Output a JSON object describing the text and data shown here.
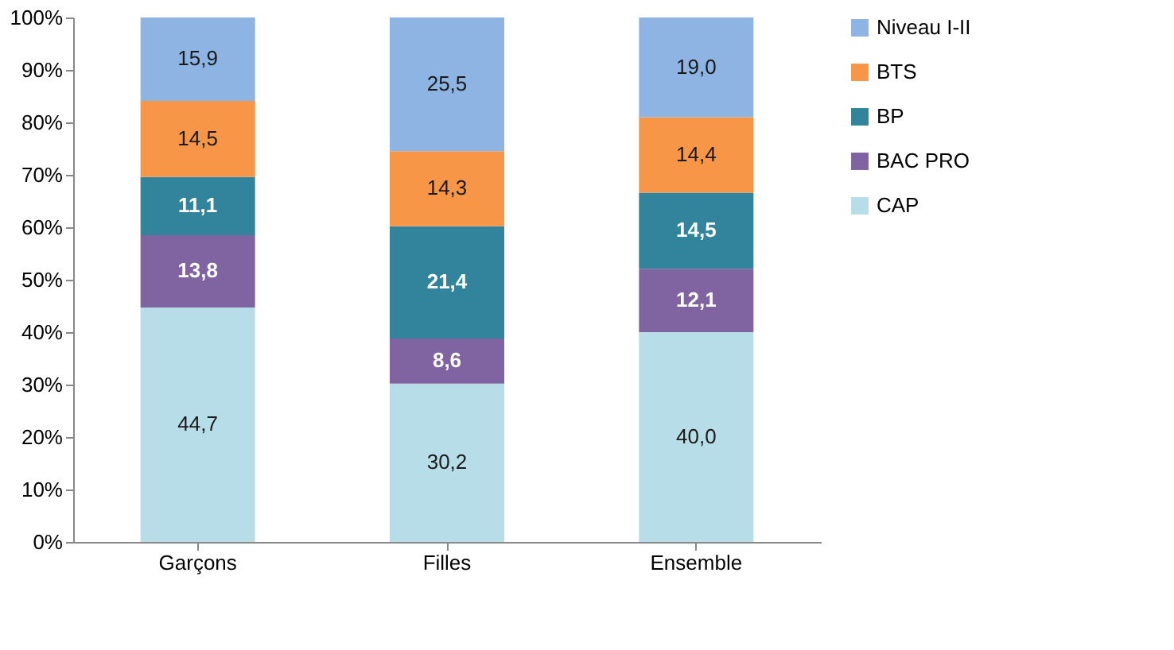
{
  "chart_data": {
    "type": "bar",
    "stacked": true,
    "categories": [
      "Garçons",
      "Filles",
      "Ensemble"
    ],
    "series": [
      {
        "name": "CAP",
        "color": "#b7dee8",
        "values": [
          44.7,
          30.2,
          40.0
        ],
        "value_labels": [
          "44,7",
          "30,2",
          "40,0"
        ]
      },
      {
        "name": "BAC PRO",
        "color": "#8064a2",
        "values": [
          13.8,
          8.6,
          12.1
        ],
        "value_labels": [
          "13,8",
          "8,6",
          "12,1"
        ]
      },
      {
        "name": "BP",
        "color": "#31849b",
        "values": [
          11.1,
          21.4,
          14.5
        ],
        "value_labels": [
          "11,1",
          "21,4",
          "14,5"
        ]
      },
      {
        "name": "BTS",
        "color": "#f79646",
        "values": [
          14.5,
          14.3,
          14.4
        ],
        "value_labels": [
          "14,5",
          "14,3",
          "14,4"
        ]
      },
      {
        "name": "Niveau I-II",
        "color": "#8eb4e3",
        "values": [
          15.9,
          25.5,
          19.0
        ],
        "value_labels": [
          "15,9",
          "25,5",
          "19,0"
        ]
      }
    ],
    "ylim": [
      0,
      100
    ],
    "yticks": [
      {
        "value": 0,
        "label": "0%"
      },
      {
        "value": 10,
        "label": "10%"
      },
      {
        "value": 20,
        "label": "20%"
      },
      {
        "value": 30,
        "label": "30%"
      },
      {
        "value": 40,
        "label": "40%"
      },
      {
        "value": 50,
        "label": "50%"
      },
      {
        "value": 60,
        "label": "60%"
      },
      {
        "value": 70,
        "label": "70%"
      },
      {
        "value": 80,
        "label": "80%"
      },
      {
        "value": 90,
        "label": "90%"
      },
      {
        "value": 100,
        "label": "100%"
      }
    ],
    "grid": false,
    "legend": "right"
  }
}
